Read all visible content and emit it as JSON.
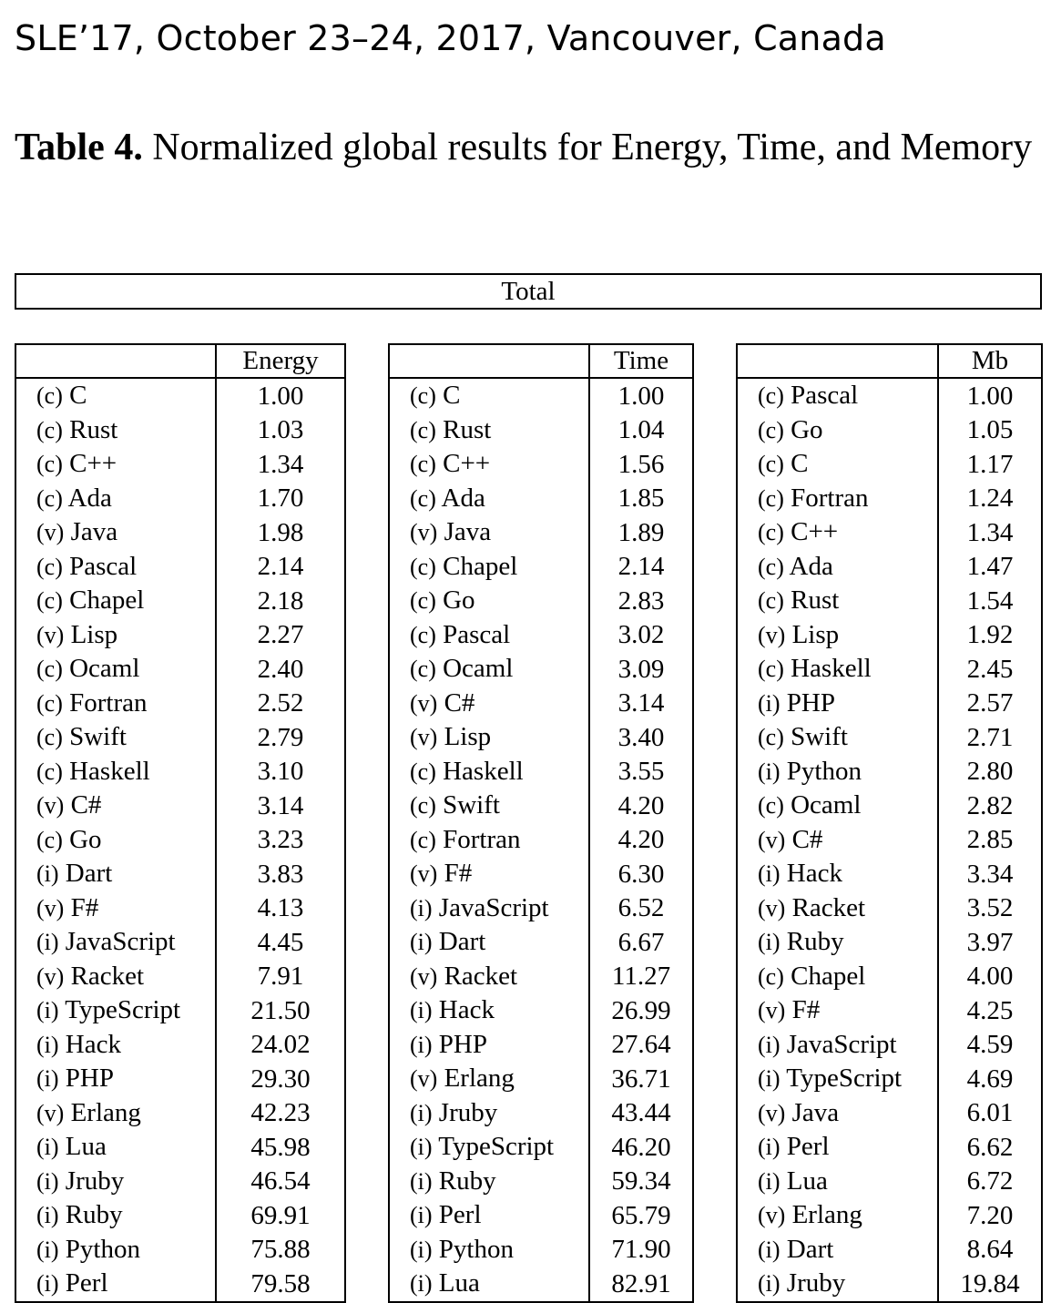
{
  "running_head": "SLE’17, October 23–24, 2017, Vancouver, Canada",
  "caption": {
    "label": "Table 4.",
    "text": "Normalized global results for Energy, Time, and Memory"
  },
  "total_header": "Total",
  "tables": [
    {
      "id": "energy",
      "header": "Energy",
      "rows": [
        {
          "kind": "(c)",
          "lang": "C",
          "value": "1.00"
        },
        {
          "kind": "(c)",
          "lang": "Rust",
          "value": "1.03"
        },
        {
          "kind": "(c)",
          "lang": "C++",
          "value": "1.34"
        },
        {
          "kind": "(c)",
          "lang": "Ada",
          "value": "1.70"
        },
        {
          "kind": "(v)",
          "lang": "Java",
          "value": "1.98"
        },
        {
          "kind": "(c)",
          "lang": "Pascal",
          "value": "2.14"
        },
        {
          "kind": "(c)",
          "lang": "Chapel",
          "value": "2.18"
        },
        {
          "kind": "(v)",
          "lang": "Lisp",
          "value": "2.27"
        },
        {
          "kind": "(c)",
          "lang": "Ocaml",
          "value": "2.40"
        },
        {
          "kind": "(c)",
          "lang": "Fortran",
          "value": "2.52"
        },
        {
          "kind": "(c)",
          "lang": "Swift",
          "value": "2.79"
        },
        {
          "kind": "(c)",
          "lang": "Haskell",
          "value": "3.10"
        },
        {
          "kind": "(v)",
          "lang": "C#",
          "value": "3.14"
        },
        {
          "kind": "(c)",
          "lang": "Go",
          "value": "3.23"
        },
        {
          "kind": "(i)",
          "lang": "Dart",
          "value": "3.83"
        },
        {
          "kind": "(v)",
          "lang": "F#",
          "value": "4.13"
        },
        {
          "kind": "(i)",
          "lang": "JavaScript",
          "value": "4.45"
        },
        {
          "kind": "(v)",
          "lang": "Racket",
          "value": "7.91"
        },
        {
          "kind": "(i)",
          "lang": "TypeScript",
          "value": "21.50"
        },
        {
          "kind": "(i)",
          "lang": "Hack",
          "value": "24.02"
        },
        {
          "kind": "(i)",
          "lang": "PHP",
          "value": "29.30"
        },
        {
          "kind": "(v)",
          "lang": "Erlang",
          "value": "42.23"
        },
        {
          "kind": "(i)",
          "lang": "Lua",
          "value": "45.98"
        },
        {
          "kind": "(i)",
          "lang": "Jruby",
          "value": "46.54"
        },
        {
          "kind": "(i)",
          "lang": "Ruby",
          "value": "69.91"
        },
        {
          "kind": "(i)",
          "lang": "Python",
          "value": "75.88"
        },
        {
          "kind": "(i)",
          "lang": "Perl",
          "value": "79.58"
        }
      ]
    },
    {
      "id": "time",
      "header": "Time",
      "rows": [
        {
          "kind": "(c)",
          "lang": "C",
          "value": "1.00"
        },
        {
          "kind": "(c)",
          "lang": "Rust",
          "value": "1.04"
        },
        {
          "kind": "(c)",
          "lang": "C++",
          "value": "1.56"
        },
        {
          "kind": "(c)",
          "lang": "Ada",
          "value": "1.85"
        },
        {
          "kind": "(v)",
          "lang": "Java",
          "value": "1.89"
        },
        {
          "kind": "(c)",
          "lang": "Chapel",
          "value": "2.14"
        },
        {
          "kind": "(c)",
          "lang": "Go",
          "value": "2.83"
        },
        {
          "kind": "(c)",
          "lang": "Pascal",
          "value": "3.02"
        },
        {
          "kind": "(c)",
          "lang": "Ocaml",
          "value": "3.09"
        },
        {
          "kind": "(v)",
          "lang": "C#",
          "value": "3.14"
        },
        {
          "kind": "(v)",
          "lang": "Lisp",
          "value": "3.40"
        },
        {
          "kind": "(c)",
          "lang": "Haskell",
          "value": "3.55"
        },
        {
          "kind": "(c)",
          "lang": "Swift",
          "value": "4.20"
        },
        {
          "kind": "(c)",
          "lang": "Fortran",
          "value": "4.20"
        },
        {
          "kind": "(v)",
          "lang": "F#",
          "value": "6.30"
        },
        {
          "kind": "(i)",
          "lang": "JavaScript",
          "value": "6.52"
        },
        {
          "kind": "(i)",
          "lang": "Dart",
          "value": "6.67"
        },
        {
          "kind": "(v)",
          "lang": "Racket",
          "value": "11.27"
        },
        {
          "kind": "(i)",
          "lang": "Hack",
          "value": "26.99"
        },
        {
          "kind": "(i)",
          "lang": "PHP",
          "value": "27.64"
        },
        {
          "kind": "(v)",
          "lang": "Erlang",
          "value": "36.71"
        },
        {
          "kind": "(i)",
          "lang": "Jruby",
          "value": "43.44"
        },
        {
          "kind": "(i)",
          "lang": "TypeScript",
          "value": "46.20"
        },
        {
          "kind": "(i)",
          "lang": "Ruby",
          "value": "59.34"
        },
        {
          "kind": "(i)",
          "lang": "Perl",
          "value": "65.79"
        },
        {
          "kind": "(i)",
          "lang": "Python",
          "value": "71.90"
        },
        {
          "kind": "(i)",
          "lang": "Lua",
          "value": "82.91"
        }
      ]
    },
    {
      "id": "mb",
      "header": "Mb",
      "rows": [
        {
          "kind": "(c)",
          "lang": "Pascal",
          "value": "1.00"
        },
        {
          "kind": "(c)",
          "lang": "Go",
          "value": "1.05"
        },
        {
          "kind": "(c)",
          "lang": "C",
          "value": "1.17"
        },
        {
          "kind": "(c)",
          "lang": "Fortran",
          "value": "1.24"
        },
        {
          "kind": "(c)",
          "lang": "C++",
          "value": "1.34"
        },
        {
          "kind": "(c)",
          "lang": "Ada",
          "value": "1.47"
        },
        {
          "kind": "(c)",
          "lang": "Rust",
          "value": "1.54"
        },
        {
          "kind": "(v)",
          "lang": "Lisp",
          "value": "1.92"
        },
        {
          "kind": "(c)",
          "lang": "Haskell",
          "value": "2.45"
        },
        {
          "kind": "(i)",
          "lang": "PHP",
          "value": "2.57"
        },
        {
          "kind": "(c)",
          "lang": "Swift",
          "value": "2.71"
        },
        {
          "kind": "(i)",
          "lang": "Python",
          "value": "2.80"
        },
        {
          "kind": "(c)",
          "lang": "Ocaml",
          "value": "2.82"
        },
        {
          "kind": "(v)",
          "lang": "C#",
          "value": "2.85"
        },
        {
          "kind": "(i)",
          "lang": "Hack",
          "value": "3.34"
        },
        {
          "kind": "(v)",
          "lang": "Racket",
          "value": "3.52"
        },
        {
          "kind": "(i)",
          "lang": "Ruby",
          "value": "3.97"
        },
        {
          "kind": "(c)",
          "lang": "Chapel",
          "value": "4.00"
        },
        {
          "kind": "(v)",
          "lang": "F#",
          "value": "4.25"
        },
        {
          "kind": "(i)",
          "lang": "JavaScript",
          "value": "4.59"
        },
        {
          "kind": "(i)",
          "lang": "TypeScript",
          "value": "4.69"
        },
        {
          "kind": "(v)",
          "lang": "Java",
          "value": "6.01"
        },
        {
          "kind": "(i)",
          "lang": "Perl",
          "value": "6.62"
        },
        {
          "kind": "(i)",
          "lang": "Lua",
          "value": "6.72"
        },
        {
          "kind": "(v)",
          "lang": "Erlang",
          "value": "7.20"
        },
        {
          "kind": "(i)",
          "lang": "Dart",
          "value": "8.64"
        },
        {
          "kind": "(i)",
          "lang": "Jruby",
          "value": "19.84"
        }
      ]
    }
  ]
}
